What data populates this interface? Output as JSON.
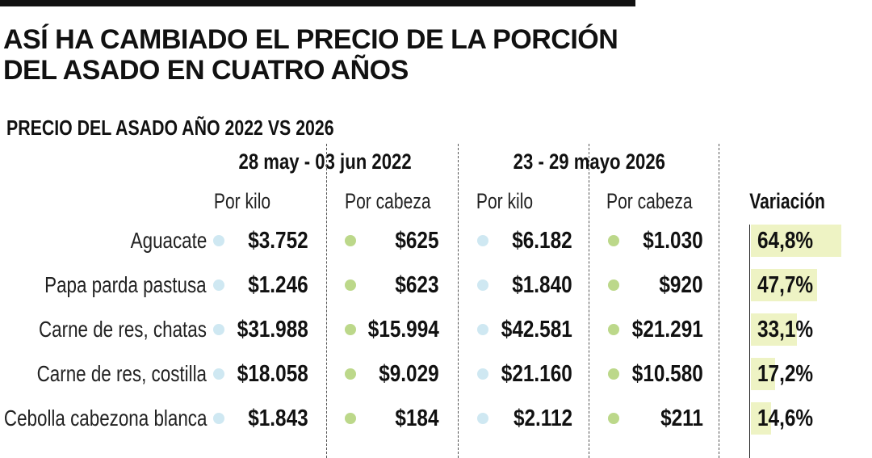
{
  "title": "ASÍ HA CAMBIADO EL PRECIO DE LA PORCIÓN DEL ASADO EN CUATRO AÑOS",
  "chart_data": {
    "type": "table",
    "subtitle": "PRECIO DEL ASADO AÑO 2022 VS 2026",
    "periods": [
      "28 may - 03 jun 2022",
      "23 - 29 mayo 2026"
    ],
    "columns": [
      "Por kilo",
      "Por cabeza",
      "Por kilo",
      "Por cabeza",
      "Variación"
    ],
    "rows": [
      {
        "item": "Aguacate",
        "kilo_2022": "$3.752",
        "cabeza_2022": "$625",
        "kilo_2026": "$6.182",
        "cabeza_2026": "$1.030",
        "variacion": "64,8%",
        "variacion_value": 64.8
      },
      {
        "item": "Papa parda pastusa",
        "kilo_2022": "$1.246",
        "cabeza_2022": "$623",
        "kilo_2026": "$1.840",
        "cabeza_2026": "$920",
        "variacion": "47,7%",
        "variacion_value": 47.7
      },
      {
        "item": "Carne de res, chatas",
        "kilo_2022": "$31.988",
        "cabeza_2022": "$15.994",
        "kilo_2026": "$42.581",
        "cabeza_2026": "$21.291",
        "variacion": "33,1%",
        "variacion_value": 33.1
      },
      {
        "item": "Carne de res, costilla",
        "kilo_2022": "$18.058",
        "cabeza_2022": "$9.029",
        "kilo_2026": "$21.160",
        "cabeza_2026": "$10.580",
        "variacion": "17,2%",
        "variacion_value": 17.2
      },
      {
        "item": "Cebolla cabezona blanca",
        "kilo_2022": "$1.843",
        "cabeza_2022": "$184",
        "kilo_2026": "$2.112",
        "cabeza_2026": "$211",
        "variacion": "14,6%",
        "variacion_value": 14.6
      }
    ]
  },
  "colors": {
    "kilo_dot": "#cfe8f2",
    "cabeza_dot": "#bcd88a",
    "variation_bar": "#eef3c4",
    "text": "#111111"
  }
}
